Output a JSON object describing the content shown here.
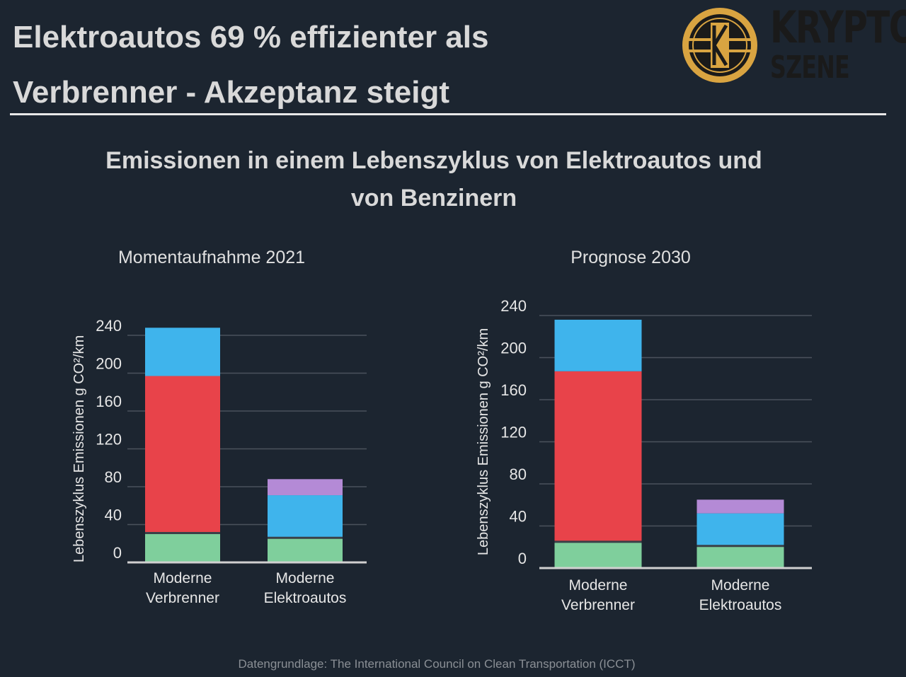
{
  "headline": {
    "line1": "Elektroautos 69 % effizienter als",
    "line2": "Verbrenner - Akzeptanz steigt"
  },
  "logo": {
    "word1": "KRYPTO",
    "word2": "SZENE",
    "badge_letter": "K",
    "colors": {
      "gold": "#d9a441",
      "dark": "#1a1a1a"
    }
  },
  "chart_title": {
    "line1": "Emissionen in einem Lebenszyklus von Elektroautos und",
    "line2": "von Benzinern"
  },
  "source_note": "Datengrundlage: The International Council on Clean Transportation (ICCT)",
  "colors": {
    "green": "#7fcf9c",
    "red": "#e8434a",
    "blue": "#3fb4ec",
    "purple": "#b48ad6",
    "grid": "#4a525c",
    "axis": "#d0d0d0",
    "text": "#e6e6e6"
  },
  "chart_data": [
    {
      "type": "bar",
      "stacked": true,
      "title": "Momentaufnahme 2021",
      "ylabel": "Lebenszyklus Emissionen g CO²/km",
      "xlabel": "",
      "ylim": [
        0,
        240
      ],
      "yticks": [
        0,
        40,
        80,
        120,
        160,
        200,
        240
      ],
      "grid": true,
      "categories": [
        [
          "Moderne",
          "Verbrenner"
        ],
        [
          "Moderne",
          "Elektroautos"
        ]
      ],
      "series": [
        {
          "color": "green",
          "values": [
            31,
            26
          ]
        },
        {
          "color": "red",
          "values": [
            166,
            0
          ]
        },
        {
          "color": "blue",
          "values": [
            51,
            45
          ]
        },
        {
          "color": "purple",
          "values": [
            0,
            17
          ]
        }
      ]
    },
    {
      "type": "bar",
      "stacked": true,
      "title": "Prognose 2030",
      "ylabel": "Lebenszyklus Emissionen g CO²/km",
      "xlabel": "",
      "ylim": [
        0,
        240
      ],
      "yticks": [
        0,
        40,
        80,
        120,
        160,
        200,
        240
      ],
      "grid": true,
      "categories": [
        [
          "Moderne",
          "Verbrenner"
        ],
        [
          "Moderne",
          "Elektroautos"
        ]
      ],
      "series": [
        {
          "color": "green",
          "values": [
            25,
            21
          ]
        },
        {
          "color": "red",
          "values": [
            162,
            0
          ]
        },
        {
          "color": "blue",
          "values": [
            49,
            31
          ]
        },
        {
          "color": "purple",
          "values": [
            0,
            13
          ]
        }
      ]
    }
  ]
}
